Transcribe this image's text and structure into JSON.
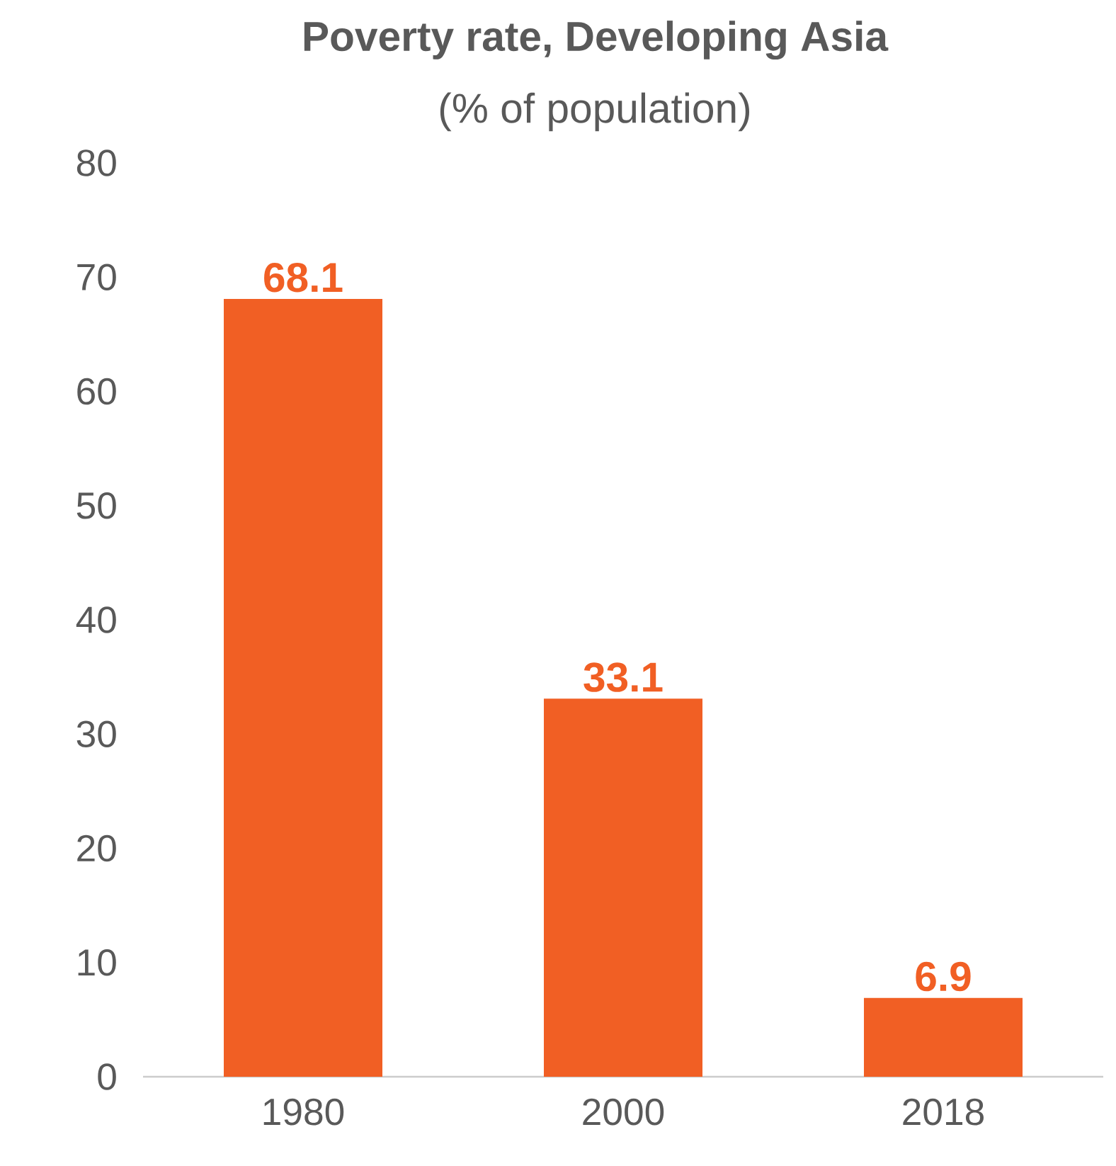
{
  "chart_data": {
    "type": "bar",
    "title": "Poverty rate, Developing Asia",
    "subtitle": "(% of population)",
    "categories": [
      "1980",
      "2000",
      "2018"
    ],
    "values": [
      68.1,
      33.1,
      6.9
    ],
    "color": "#f15f24",
    "ylim": [
      0,
      80
    ],
    "yticks": [
      0,
      10,
      20,
      30,
      40,
      50,
      60,
      70,
      80
    ],
    "data_labels": true
  }
}
